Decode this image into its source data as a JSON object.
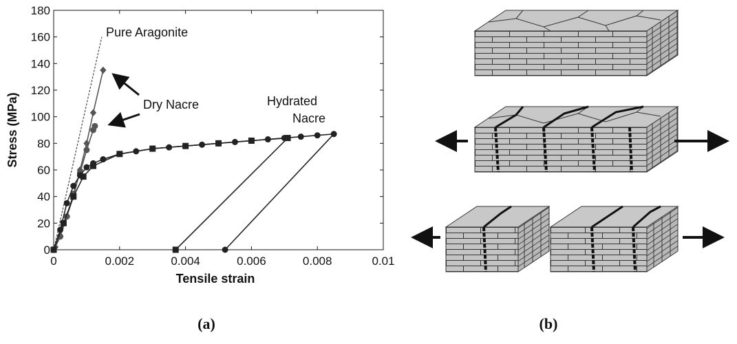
{
  "chart_data": {
    "type": "line",
    "xlabel": "Tensile strain",
    "ylabel": "Stress (MPa)",
    "xlim": [
      0,
      0.01
    ],
    "xticks": [
      0,
      0.002,
      0.004,
      0.006,
      0.008,
      0.01
    ],
    "ylim": [
      0,
      180
    ],
    "yticks": [
      0,
      20,
      40,
      60,
      80,
      100,
      120,
      140,
      160,
      180
    ],
    "annotations": [
      "Pure Aragonite",
      "Dry Nacre",
      [
        "Hydrated",
        "Nacre"
      ]
    ],
    "series": [
      {
        "color": "#444444",
        "marker": "none",
        "dashed": true,
        "x": [
          0,
          0.00146
        ],
        "values": [
          0,
          160
        ]
      },
      {
        "color": "#555555",
        "marker": "diamond",
        "x": [
          0,
          5e-05,
          0.0002,
          0.0004,
          0.0006,
          0.0008,
          0.001,
          0.0012,
          0.0015
        ],
        "values": [
          0,
          2,
          10,
          25,
          40,
          60,
          80,
          103,
          135
        ]
      },
      {
        "color": "#555555",
        "marker": "circle",
        "x": [
          0,
          0.0002,
          0.0004,
          0.0006,
          0.0008,
          0.001,
          0.0012,
          0.00125
        ],
        "values": [
          0,
          10,
          25,
          42,
          58,
          75,
          90,
          93
        ]
      },
      {
        "color": "#222222",
        "marker": "circle",
        "x": [
          0,
          0.0002,
          0.0004,
          0.0006,
          0.0008,
          0.001,
          0.0012,
          0.0015,
          0.002,
          0.0025,
          0.003,
          0.0035,
          0.004,
          0.0045,
          0.005,
          0.0055,
          0.006,
          0.0065,
          0.007,
          0.0075,
          0.008,
          0.0085,
          0.0052
        ],
        "values": [
          0,
          15,
          35,
          48,
          56,
          62,
          65,
          68,
          72,
          74,
          76,
          77,
          78,
          79,
          80,
          81,
          82,
          83,
          84,
          85,
          86,
          87,
          0
        ]
      },
      {
        "color": "#222222",
        "marker": "square",
        "x": [
          0,
          0.0003,
          0.0006,
          0.0009,
          0.0012,
          0.002,
          0.003,
          0.004,
          0.005,
          0.006,
          0.0071,
          0.0037
        ],
        "values": [
          0,
          20,
          40,
          55,
          63,
          72,
          76,
          78,
          80,
          82,
          84,
          0
        ]
      }
    ]
  },
  "captions": [
    "(a)",
    "(b)"
  ]
}
